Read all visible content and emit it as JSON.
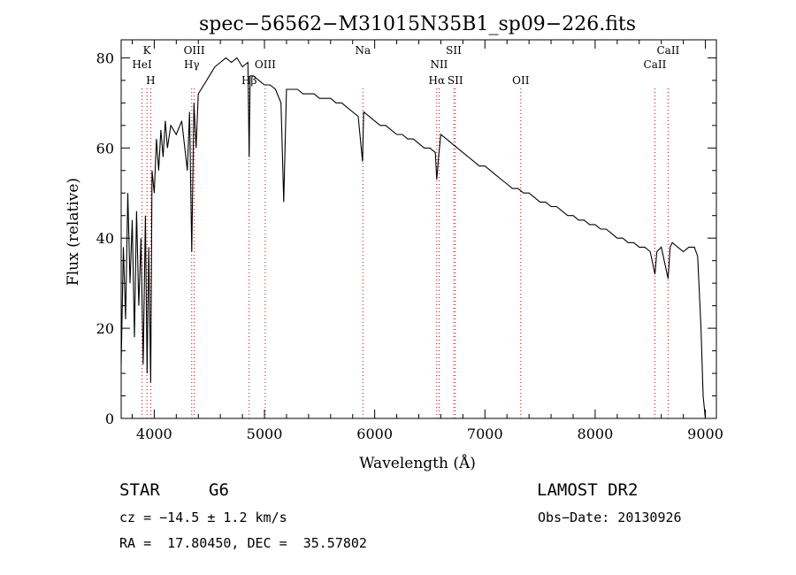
{
  "chart_data": {
    "type": "line",
    "title": "spec−56562−M31015N35B1_sp09−226.fits",
    "xlabel": "Wavelength (Å)",
    "ylabel": "Flux (relative)",
    "xlim": [
      3700,
      9100
    ],
    "ylim": [
      0,
      84
    ],
    "x_ticks": [
      4000,
      5000,
      6000,
      7000,
      8000,
      9000
    ],
    "y_ticks": [
      0,
      20,
      40,
      60,
      80
    ],
    "grid": false,
    "series": [
      {
        "x": [
          3700,
          3720,
          3740,
          3760,
          3780,
          3800,
          3820,
          3840,
          3860,
          3880,
          3900,
          3920,
          3935,
          3950,
          3968,
          3980,
          4000,
          4020,
          4040,
          4060,
          4080,
          4100,
          4120,
          4150,
          4200,
          4250,
          4300,
          4320,
          4340,
          4360,
          4380,
          4400,
          4450,
          4500,
          4550,
          4600,
          4650,
          4700,
          4750,
          4800,
          4850,
          4861,
          4870,
          4900,
          4950,
          5000,
          5050,
          5100,
          5150,
          5175,
          5200,
          5250,
          5300,
          5350,
          5400,
          5450,
          5500,
          5550,
          5600,
          5650,
          5700,
          5750,
          5800,
          5850,
          5890,
          5900,
          5950,
          6000,
          6050,
          6100,
          6150,
          6200,
          6250,
          6300,
          6350,
          6400,
          6450,
          6500,
          6550,
          6563,
          6580,
          6600,
          6650,
          6700,
          6750,
          6800,
          6850,
          6900,
          6950,
          7000,
          7050,
          7100,
          7150,
          7200,
          7250,
          7300,
          7350,
          7400,
          7450,
          7500,
          7550,
          7600,
          7650,
          7700,
          7750,
          7800,
          7850,
          7900,
          7950,
          8000,
          8050,
          8100,
          8150,
          8200,
          8250,
          8300,
          8350,
          8400,
          8450,
          8500,
          8542,
          8560,
          8600,
          8662,
          8680,
          8700,
          8750,
          8800,
          8850,
          8900,
          8930,
          8960,
          8980,
          9000
        ],
        "y": [
          12,
          38,
          22,
          50,
          30,
          44,
          18,
          46,
          25,
          40,
          12,
          45,
          10,
          38,
          8,
          55,
          50,
          62,
          55,
          64,
          58,
          66,
          60,
          65,
          63,
          66,
          55,
          68,
          37,
          70,
          60,
          72,
          74,
          76,
          78,
          79,
          80,
          79,
          80,
          78,
          79,
          58,
          76,
          76,
          75,
          74,
          74,
          73,
          70,
          48,
          73,
          73,
          73,
          72,
          72,
          72,
          71,
          71,
          71,
          70,
          70,
          69,
          68,
          67,
          57,
          68,
          67,
          66,
          65,
          65,
          64,
          63,
          63,
          62,
          62,
          61,
          60,
          60,
          59,
          53,
          58,
          63,
          62,
          61,
          60,
          59,
          58,
          57,
          56,
          56,
          55,
          54,
          53,
          52,
          51,
          51,
          50,
          50,
          49,
          48,
          48,
          47,
          47,
          46,
          45,
          45,
          44,
          44,
          43,
          43,
          42,
          42,
          41,
          40,
          40,
          39,
          39,
          38,
          38,
          37,
          32,
          37,
          38,
          31,
          38,
          39,
          38,
          37,
          38,
          38,
          36,
          20,
          5,
          0
        ]
      }
    ],
    "line_markers": [
      {
        "label": "K",
        "x": 3934,
        "row": 0
      },
      {
        "label": "HeI",
        "x": 3889,
        "row": 1
      },
      {
        "label": "H",
        "x": 3968,
        "row": 2
      },
      {
        "label": "OIII",
        "x": 4363,
        "row": 0
      },
      {
        "label": "Hγ",
        "x": 4340,
        "row": 1
      },
      {
        "label": "Hβ",
        "x": 4861,
        "row": 2
      },
      {
        "label": "OIII",
        "x": 5007,
        "row": 1
      },
      {
        "label": "Na",
        "x": 5893,
        "row": 0
      },
      {
        "label": "SII",
        "x": 6717,
        "row": 0
      },
      {
        "label": "NII",
        "x": 6584,
        "row": 1
      },
      {
        "label": "Hα",
        "x": 6563,
        "row": 2
      },
      {
        "label": "SII",
        "x": 6731,
        "row": 2
      },
      {
        "label": "OII",
        "x": 7325,
        "row": 2
      },
      {
        "label": "CaII",
        "x": 8662,
        "row": 0
      },
      {
        "label": "CaII",
        "x": 8542,
        "row": 1
      }
    ]
  },
  "info": {
    "object_type": "STAR",
    "subclass": "G6",
    "survey": "LAMOST DR2",
    "cz": "cz = −14.5 ± 1.2 km/s",
    "obs_date": "Obs−Date: 20130926",
    "coords": "RA =  17.80450, DEC =  35.57802"
  }
}
